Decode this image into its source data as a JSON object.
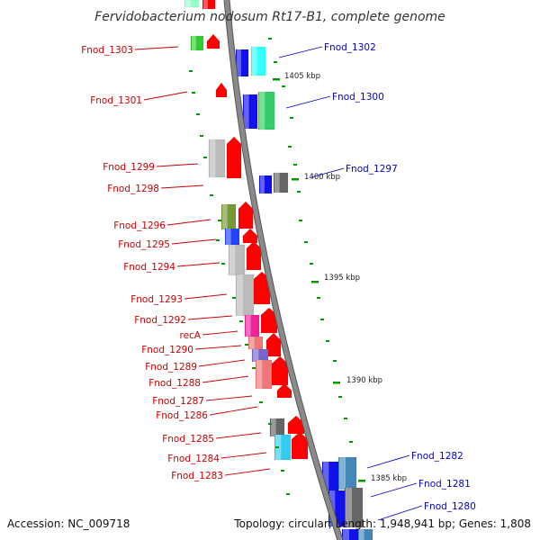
{
  "title": "Fervidobacterium nodosum Rt17-B1, complete genome",
  "footer": {
    "accession": "Accession: NC_009718",
    "summary": "Topology: circular; Length: 1,948,941 bp; Genes: 1,808"
  },
  "colors": {
    "backbone": "#8a8a8a",
    "label_left": "#cc0000",
    "label_right": "#0000cc",
    "tick": "#009900"
  },
  "kbp_labels": [
    "1405 kbp",
    "1400 kbp",
    "1395 kbp",
    "1390 kbp",
    "1385 kbp"
  ],
  "genes_left": [
    {
      "label": "Fnod_1303"
    },
    {
      "label": "Fnod_1301"
    },
    {
      "label": "Fnod_1299"
    },
    {
      "label": "Fnod_1298"
    },
    {
      "label": "Fnod_1296"
    },
    {
      "label": "Fnod_1295"
    },
    {
      "label": "Fnod_1294"
    },
    {
      "label": "Fnod_1293"
    },
    {
      "label": "Fnod_1292"
    },
    {
      "label": "recA"
    },
    {
      "label": "Fnod_1290"
    },
    {
      "label": "Fnod_1289"
    },
    {
      "label": "Fnod_1288"
    },
    {
      "label": "Fnod_1287"
    },
    {
      "label": "Fnod_1286"
    },
    {
      "label": "Fnod_1285"
    },
    {
      "label": "Fnod_1284"
    },
    {
      "label": "Fnod_1283"
    }
  ],
  "genes_right": [
    {
      "label": "Fnod_1302"
    },
    {
      "label": "Fnod_1300"
    },
    {
      "label": "Fnod_1297"
    },
    {
      "label": "Fnod_1282"
    },
    {
      "label": "Fnod_1281"
    },
    {
      "label": "Fnod_1280"
    }
  ]
}
